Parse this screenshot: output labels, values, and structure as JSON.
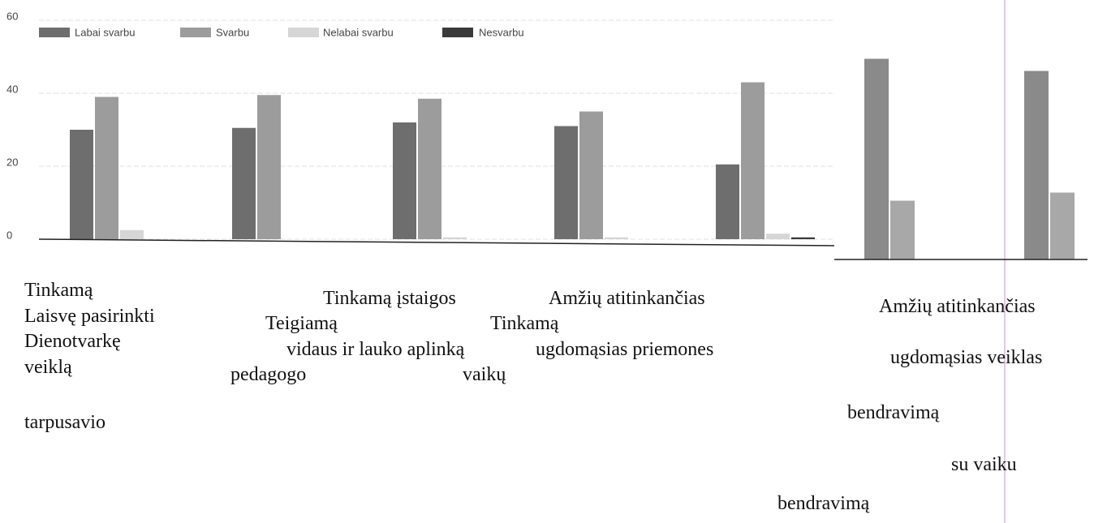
{
  "chart_data": [
    {
      "type": "bar",
      "ylim": [
        0,
        60
      ],
      "yticks": [
        0,
        20,
        40,
        60
      ],
      "grid": true,
      "series": [
        {
          "name": "Labai svarbu",
          "color": "#6e6e6e",
          "values": [
            30,
            30.5,
            32,
            31,
            20.5
          ]
        },
        {
          "name": "Svarbu",
          "color": "#9c9c9c",
          "values": [
            39,
            39.5,
            38.5,
            35,
            43
          ]
        },
        {
          "name": "Nelabai svarbu",
          "color": "#d6d6d6",
          "values": [
            2.5,
            0,
            0.5,
            0.5,
            1.5
          ]
        },
        {
          "name": "Nesvarbu",
          "color": "#3a3a3a",
          "values": [
            0,
            0,
            0,
            0,
            0.5
          ]
        }
      ]
    },
    {
      "type": "bar",
      "ylim": [
        0,
        50
      ],
      "series": [
        {
          "color": "#8a8a8a",
          "values": [
            49.5,
            46.5
          ]
        },
        {
          "color": "#a8a8a8",
          "values": [
            14.5,
            16.5
          ]
        }
      ]
    }
  ],
  "labels": [
    "Tinkamą",
    "Laisvę pasirinkti",
    "Dienotvarkę",
    "veiklą",
    "tarpusavio",
    "Tinkamą įstaigos",
    "Teigiamą",
    "vidaus ir lauko aplinką",
    "ugdomąsias priemones",
    "pedagogo",
    "Tinkamą",
    "vaikų",
    "Amžių atitinkančias",
    "Amžių atitinkančias",
    "ugdomąsias veiklas",
    "bendravimą",
    "su vaiku",
    "bendravimą"
  ]
}
